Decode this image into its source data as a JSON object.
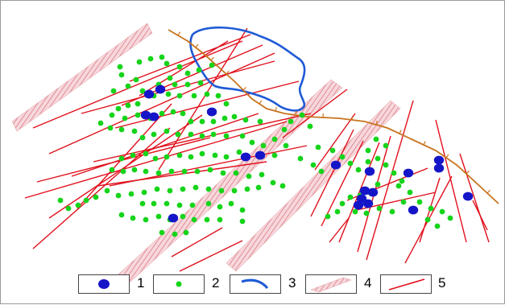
{
  "map": {
    "colors": {
      "fault_line": "#e0101c",
      "large_deposit": "#1515c8",
      "small_deposit": "#15d41a",
      "contour": "#1e5ad6",
      "thrust": "#c8731e",
      "shear_zone": "#e8a0a8"
    },
    "legend": [
      {
        "key": "1",
        "symbol": "large-blue-deposit"
      },
      {
        "key": "2",
        "symbol": "small-green-deposit"
      },
      {
        "key": "3",
        "symbol": "blue-boundary-line"
      },
      {
        "key": "4",
        "symbol": "hatched-zone"
      },
      {
        "key": "5",
        "symbol": "red-fault-line"
      }
    ]
  }
}
